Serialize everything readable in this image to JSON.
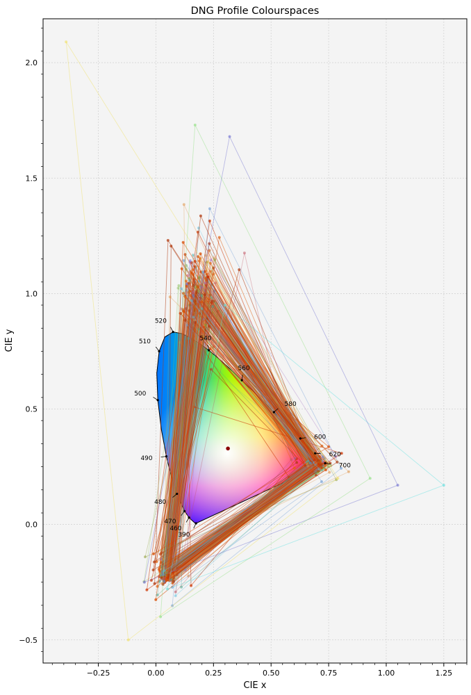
{
  "chart_data": {
    "type": "line",
    "title": "DNG Profile Colourspaces",
    "xlabel": "CIE x",
    "ylabel": "CIE y",
    "xlim": [
      -0.49,
      1.35
    ],
    "ylim": [
      -0.6,
      2.19
    ],
    "x_ticks": [
      "−0.25",
      "0.00",
      "0.25",
      "0.50",
      "0.75",
      "1.00",
      "1.25"
    ],
    "x_tick_values": [
      -0.25,
      0,
      0.25,
      0.5,
      0.75,
      1.0,
      1.25
    ],
    "y_ticks": [
      "−0.5",
      "0.0",
      "0.5",
      "1.0",
      "1.5",
      "2.0"
    ],
    "y_tick_values": [
      -0.5,
      0,
      0.5,
      1.0,
      1.5,
      2.0
    ],
    "grid": true,
    "background": "#f4f4f4",
    "whitepoint": [
      0.3127,
      0.329
    ],
    "spectral_locus_labels": [
      {
        "text": "390",
        "x": 0.1741,
        "y": 0.005
      },
      {
        "text": "460",
        "x": 0.144,
        "y": 0.0297
      },
      {
        "text": "470",
        "x": 0.1241,
        "y": 0.0578
      },
      {
        "text": "480",
        "x": 0.0913,
        "y": 0.1327
      },
      {
        "text": "490",
        "x": 0.0454,
        "y": 0.295
      },
      {
        "text": "500",
        "x": 0.0082,
        "y": 0.5384
      },
      {
        "text": "510",
        "x": 0.0139,
        "y": 0.7502
      },
      {
        "text": "520",
        "x": 0.0743,
        "y": 0.8338
      },
      {
        "text": "540",
        "x": 0.2296,
        "y": 0.7543
      },
      {
        "text": "560",
        "x": 0.3731,
        "y": 0.6245
      },
      {
        "text": "580",
        "x": 0.5125,
        "y": 0.4866
      },
      {
        "text": "600",
        "x": 0.627,
        "y": 0.3725
      },
      {
        "text": "620",
        "x": 0.6915,
        "y": 0.3083
      },
      {
        "text": "700",
        "x": 0.7347,
        "y": 0.2653
      }
    ],
    "gamut_palette": [
      "#cc3300",
      "#d94a00",
      "#b03a10",
      "#e0661a",
      "#8a9a30",
      "#5a8fd0",
      "#4aa08a",
      "#a070c0",
      "#d8b040",
      "#60c0e0",
      "#c05060",
      "#7070d0",
      "#90c060",
      "#e09040",
      "#50b0b0"
    ],
    "gamut_count": 230
  }
}
